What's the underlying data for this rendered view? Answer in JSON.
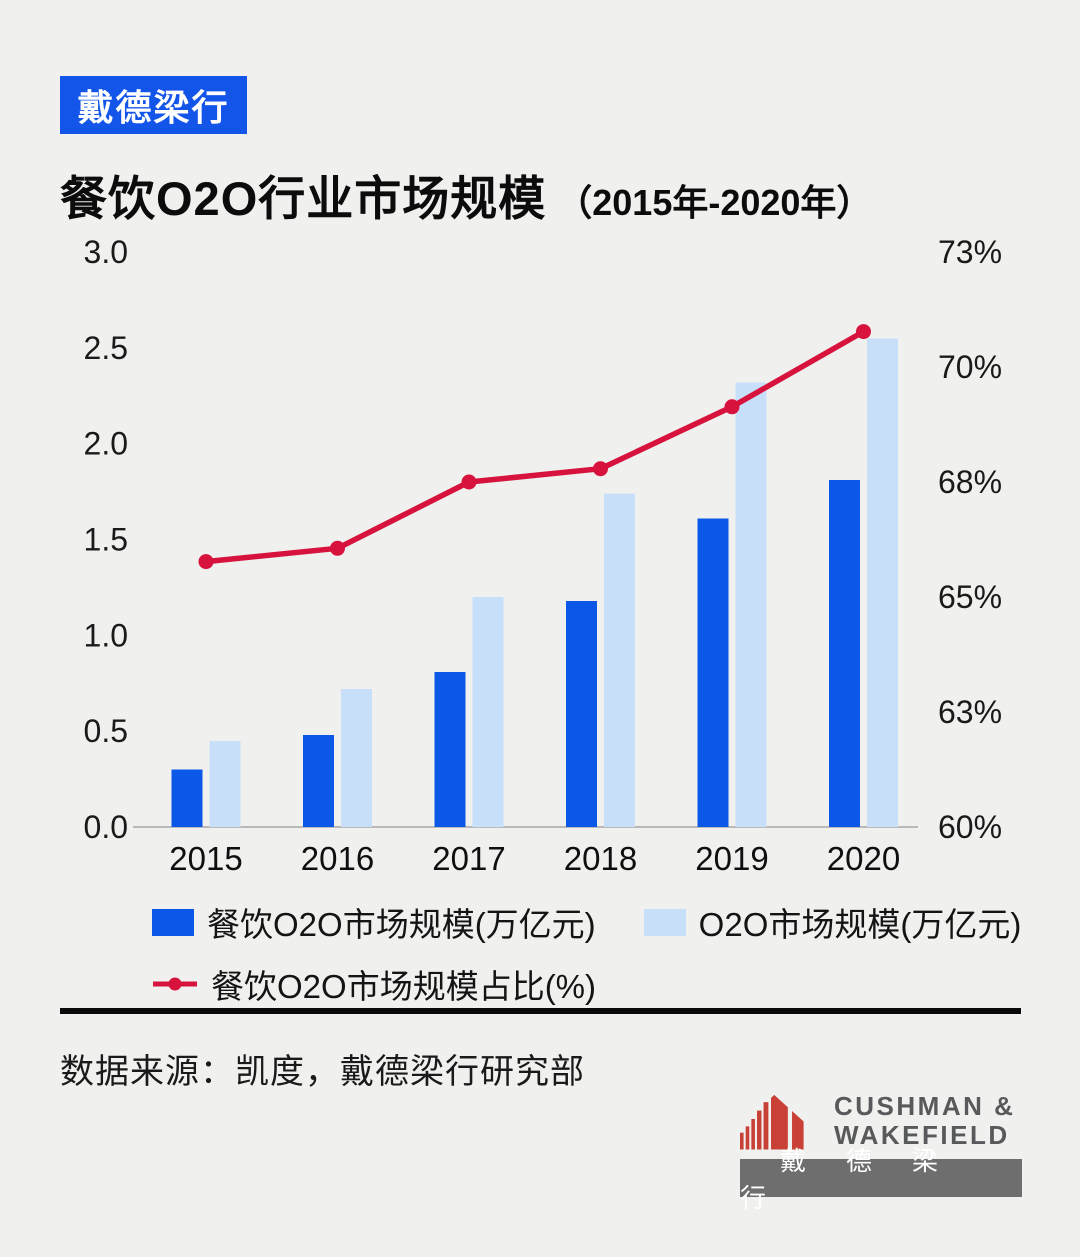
{
  "page": {
    "background": "#f0f0ee"
  },
  "header": {
    "badge_label": "戴德梁行",
    "badge_bg": "#1355e8",
    "title": "餐饮O2O行业市场规模",
    "subtitle": "（2015年-2020年）"
  },
  "chart_data": {
    "type": "bar+line",
    "title": "餐饮O2O行业市场规模（2015年-2020年）",
    "categories": [
      "2015",
      "2016",
      "2017",
      "2018",
      "2019",
      "2020"
    ],
    "series": [
      {
        "name": "餐饮O2O市场规模(万亿元)",
        "type": "bar",
        "axis": "left",
        "color": "#0b57e7",
        "values": [
          0.3,
          0.48,
          0.81,
          1.18,
          1.61,
          1.81
        ]
      },
      {
        "name": "O2O市场规模(万亿元)",
        "type": "bar",
        "axis": "left",
        "color": "#c7dff8",
        "values": [
          0.45,
          0.72,
          1.2,
          1.74,
          2.32,
          2.55
        ]
      },
      {
        "name": "餐饮O2O市场规模占比(%)",
        "type": "line",
        "axis": "right",
        "color": "#d6123d",
        "values": [
          66.0,
          66.3,
          67.8,
          68.1,
          69.5,
          71.2
        ]
      }
    ],
    "left_axis": {
      "min": 0,
      "max": 3,
      "tick_labels": [
        "3.0",
        "2.5",
        "2.0",
        "1.5",
        "1.0",
        "0.5",
        "0.0"
      ]
    },
    "right_axis": {
      "min": 60,
      "max": 73,
      "tick_labels": [
        "73%",
        "70%",
        "68%",
        "65%",
        "63%",
        "60%"
      ]
    },
    "grid": false,
    "legend_position": "bottom",
    "axis_line_color": "#b9b9b9",
    "text_color": "#1a1a1a"
  },
  "footer": {
    "source": "数据来源：凯度，戴德梁行研究部"
  },
  "logo": {
    "word1": "CUSHMAN &",
    "word2": "WAKEFIELD",
    "cjk": "戴德梁行",
    "red": "#c94036",
    "gray": "#58595b",
    "bar_bg": "#6e6e6e"
  }
}
